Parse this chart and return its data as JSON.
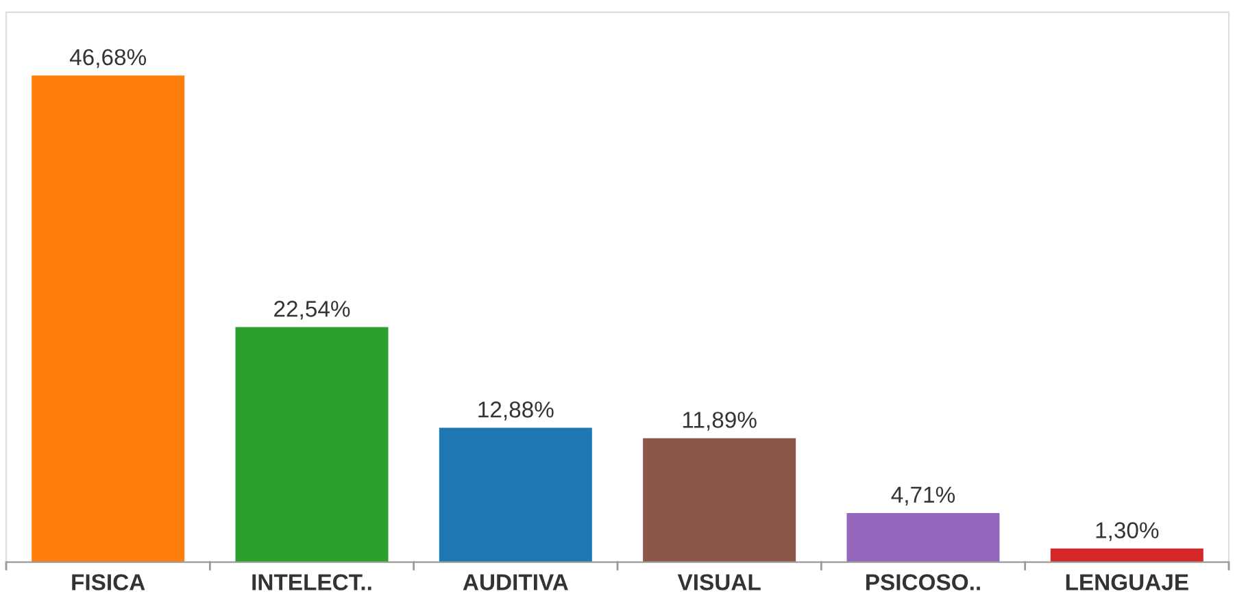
{
  "chart_data": {
    "type": "bar",
    "categories": [
      "FISICA",
      "INTELECT..",
      "AUDITIVA",
      "VISUAL",
      "PSICOSO..",
      "LENGUAJE"
    ],
    "values": [
      46.68,
      22.54,
      12.88,
      11.89,
      4.71,
      1.3
    ],
    "colors": [
      "#ff7f0e",
      "#2ca02c",
      "#1f77b4",
      "#8c564b",
      "#9467bd",
      "#d62728"
    ],
    "value_labels": [
      "46,68%",
      "22,54%",
      "12,88%",
      "11,89%",
      "4,71%",
      "1,30%"
    ],
    "grid": false,
    "legend": false
  }
}
